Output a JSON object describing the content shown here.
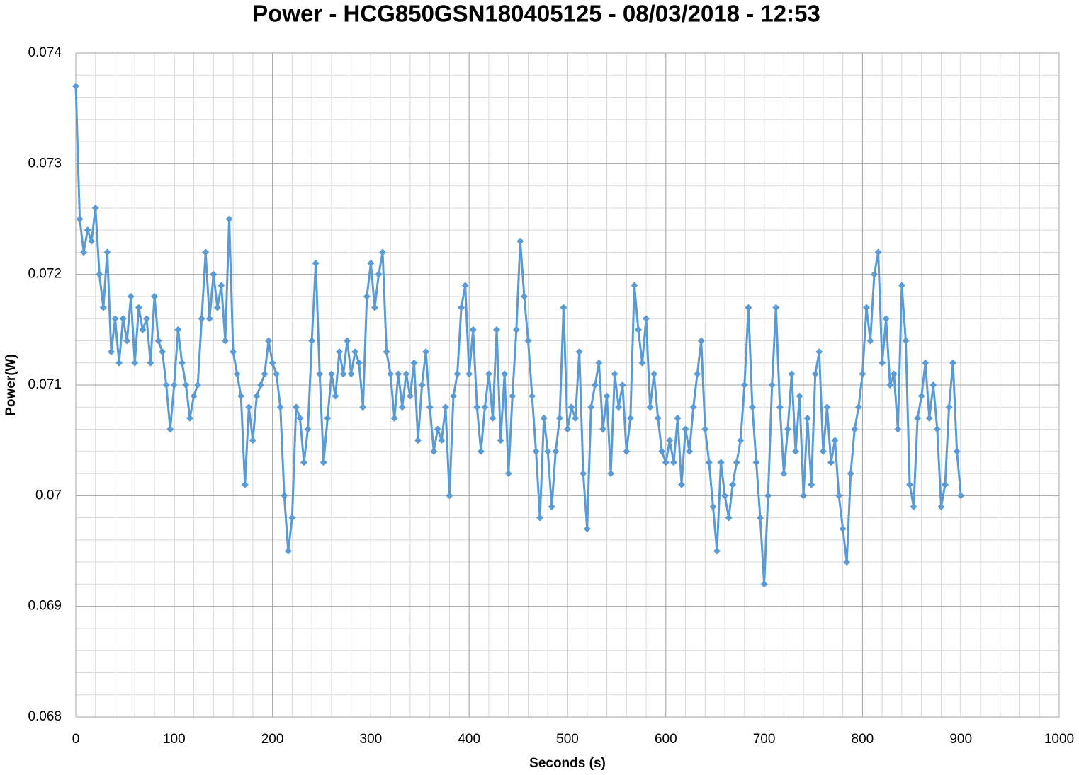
{
  "chart_data": {
    "type": "line",
    "title": "Power - HCG850GSN180405125 - 08/03/2018 - 12:53",
    "x_label": "Seconds (s)",
    "y_label": "Power(W)",
    "color": "#5b9bd5",
    "marker": "diamond",
    "grid": true,
    "xminor": 20,
    "yminor": 0.0002,
    "xlim": [
      0,
      1000
    ],
    "xticks": [
      0,
      100,
      200,
      300,
      400,
      500,
      600,
      700,
      800,
      900,
      1000
    ],
    "ylim": [
      0.068,
      0.074
    ],
    "yticks": [
      0.068,
      0.069,
      0.07,
      0.071,
      0.072,
      0.073,
      0.074
    ],
    "x": [
      0,
      4,
      8,
      12,
      16,
      20,
      24,
      28,
      32,
      36,
      40,
      44,
      48,
      52,
      56,
      60,
      64,
      68,
      72,
      76,
      80,
      84,
      88,
      92,
      96,
      100,
      104,
      108,
      112,
      116,
      120,
      124,
      128,
      132,
      136,
      140,
      144,
      148,
      152,
      156,
      160,
      164,
      168,
      172,
      176,
      180,
      184,
      188,
      192,
      196,
      200,
      204,
      208,
      212,
      216,
      220,
      224,
      228,
      232,
      236,
      240,
      244,
      248,
      252,
      256,
      260,
      264,
      268,
      272,
      276,
      280,
      284,
      288,
      292,
      296,
      300,
      304,
      308,
      312,
      316,
      320,
      324,
      328,
      332,
      336,
      340,
      344,
      348,
      352,
      356,
      360,
      364,
      368,
      372,
      376,
      380,
      384,
      388,
      392,
      396,
      400,
      404,
      408,
      412,
      416,
      420,
      424,
      428,
      432,
      436,
      440,
      444,
      448,
      452,
      456,
      460,
      464,
      468,
      472,
      476,
      480,
      484,
      488,
      492,
      496,
      500,
      504,
      508,
      512,
      516,
      520,
      524,
      528,
      532,
      536,
      540,
      544,
      548,
      552,
      556,
      560,
      564,
      568,
      572,
      576,
      580,
      584,
      588,
      592,
      596,
      600,
      604,
      608,
      612,
      616,
      620,
      624,
      628,
      632,
      636,
      640,
      644,
      648,
      652,
      656,
      660,
      664,
      668,
      672,
      676,
      680,
      684,
      688,
      692,
      696,
      700,
      704,
      708,
      712,
      716,
      720,
      724,
      728,
      732,
      736,
      740,
      744,
      748,
      752,
      756,
      760,
      764,
      768,
      772,
      776,
      780,
      784,
      788,
      792,
      796,
      800,
      804,
      808,
      812,
      816,
      820,
      824,
      828,
      832,
      836,
      840,
      844,
      848,
      852,
      856,
      860,
      864,
      868,
      872,
      876,
      880,
      884,
      888,
      892,
      896,
      900
    ],
    "values": [
      0.0737,
      0.0725,
      0.0722,
      0.0724,
      0.0723,
      0.0726,
      0.072,
      0.0717,
      0.0722,
      0.0713,
      0.0716,
      0.0712,
      0.0716,
      0.0714,
      0.0718,
      0.0712,
      0.0717,
      0.0715,
      0.0716,
      0.0712,
      0.0718,
      0.0714,
      0.0713,
      0.071,
      0.0706,
      0.071,
      0.0715,
      0.0712,
      0.071,
      0.0707,
      0.0709,
      0.071,
      0.0716,
      0.0722,
      0.0716,
      0.072,
      0.0717,
      0.0719,
      0.0714,
      0.0725,
      0.0713,
      0.0711,
      0.0709,
      0.0701,
      0.0708,
      0.0705,
      0.0709,
      0.071,
      0.0711,
      0.0714,
      0.0712,
      0.0711,
      0.0708,
      0.07,
      0.0695,
      0.0698,
      0.0708,
      0.0707,
      0.0703,
      0.0706,
      0.0714,
      0.0721,
      0.0711,
      0.0703,
      0.0707,
      0.0711,
      0.0709,
      0.0713,
      0.0711,
      0.0714,
      0.0711,
      0.0713,
      0.0712,
      0.0708,
      0.0718,
      0.0721,
      0.0717,
      0.072,
      0.0722,
      0.0713,
      0.0711,
      0.0707,
      0.0711,
      0.0708,
      0.0711,
      0.0709,
      0.0712,
      0.0705,
      0.071,
      0.0713,
      0.0708,
      0.0704,
      0.0706,
      0.0705,
      0.0708,
      0.07,
      0.0709,
      0.0711,
      0.0717,
      0.0719,
      0.0711,
      0.0715,
      0.0708,
      0.0704,
      0.0708,
      0.0711,
      0.0707,
      0.0715,
      0.0705,
      0.0711,
      0.0702,
      0.0709,
      0.0715,
      0.0723,
      0.0718,
      0.0714,
      0.0709,
      0.0704,
      0.0698,
      0.0707,
      0.0704,
      0.0699,
      0.0704,
      0.0707,
      0.0717,
      0.0706,
      0.0708,
      0.0707,
      0.0713,
      0.0702,
      0.0697,
      0.0708,
      0.071,
      0.0712,
      0.0706,
      0.0709,
      0.0702,
      0.0711,
      0.0708,
      0.071,
      0.0704,
      0.0707,
      0.0719,
      0.0715,
      0.0712,
      0.0716,
      0.0708,
      0.0711,
      0.0707,
      0.0704,
      0.0703,
      0.0705,
      0.0703,
      0.0707,
      0.0701,
      0.0706,
      0.0704,
      0.0708,
      0.0711,
      0.0714,
      0.0706,
      0.0703,
      0.0699,
      0.0695,
      0.0703,
      0.07,
      0.0698,
      0.0701,
      0.0703,
      0.0705,
      0.071,
      0.0717,
      0.0708,
      0.0703,
      0.0698,
      0.0692,
      0.07,
      0.071,
      0.0717,
      0.0708,
      0.0702,
      0.0706,
      0.0711,
      0.0704,
      0.0709,
      0.07,
      0.0707,
      0.0701,
      0.0711,
      0.0713,
      0.0704,
      0.0708,
      0.0703,
      0.0705,
      0.07,
      0.0697,
      0.0694,
      0.0702,
      0.0706,
      0.0708,
      0.0711,
      0.0717,
      0.0714,
      0.072,
      0.0722,
      0.0712,
      0.0716,
      0.071,
      0.0711,
      0.0706,
      0.0719,
      0.0714,
      0.0701,
      0.0699,
      0.0707,
      0.0709,
      0.0712,
      0.0707,
      0.071,
      0.0706,
      0.0699,
      0.0701,
      0.0708,
      0.0712,
      0.0704,
      0.07
    ]
  }
}
